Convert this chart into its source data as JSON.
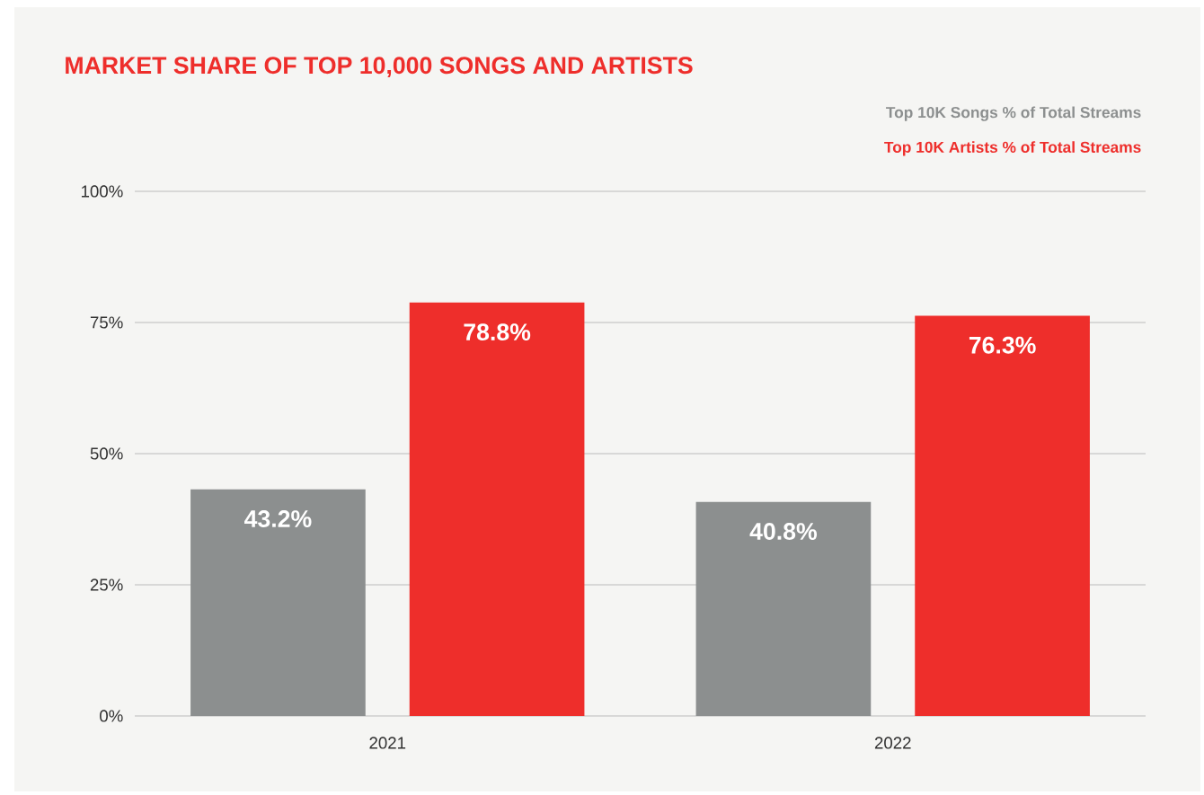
{
  "chart_data": {
    "type": "bar",
    "title": "MARKET SHARE OF TOP 10,000 SONGS AND ARTISTS",
    "categories": [
      "2021",
      "2022"
    ],
    "series": [
      {
        "name": "Top 10K Songs % of Total Streams",
        "color": "#8c8f8f",
        "values": [
          43.2,
          40.8
        ],
        "value_labels": [
          "43.2%",
          "40.8%"
        ]
      },
      {
        "name": "Top 10K Artists % of Total Streams",
        "color": "#ee2e2b",
        "values": [
          78.8,
          76.3
        ],
        "value_labels": [
          "78.8%",
          "76.3%"
        ]
      }
    ],
    "ylim": [
      0,
      100
    ],
    "yticks": [
      {
        "value": 0,
        "label": "0%"
      },
      {
        "value": 25,
        "label": "25%"
      },
      {
        "value": 50,
        "label": "50%"
      },
      {
        "value": 75,
        "label": "75%"
      },
      {
        "value": 100,
        "label": "100%"
      }
    ],
    "grid": "y",
    "legend": "top right"
  }
}
